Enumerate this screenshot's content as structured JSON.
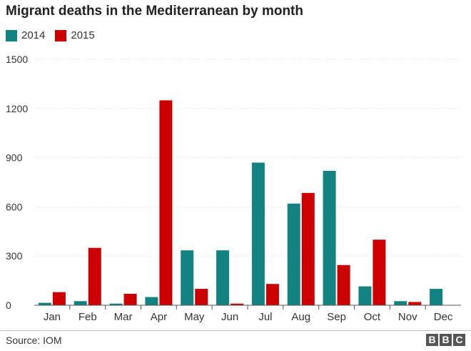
{
  "title": "Migrant deaths in the Mediterranean by month",
  "source": "Source: IOM",
  "logo_letters": [
    "B",
    "B",
    "C"
  ],
  "colors": {
    "2014": "#138381",
    "2015": "#cc0000",
    "grid": "#dddddd",
    "axis": "#555555"
  },
  "chart_data": {
    "type": "bar",
    "title": "Migrant deaths in the Mediterranean by month",
    "xlabel": "",
    "ylabel": "",
    "categories": [
      "Jan",
      "Feb",
      "Mar",
      "Apr",
      "May",
      "Jun",
      "Jul",
      "Aug",
      "Sep",
      "Oct",
      "Nov",
      "Dec"
    ],
    "series": [
      {
        "name": "2014",
        "values": [
          15,
          25,
          10,
          50,
          335,
          335,
          870,
          620,
          820,
          115,
          25,
          100
        ]
      },
      {
        "name": "2015",
        "values": [
          80,
          350,
          70,
          1250,
          100,
          10,
          130,
          685,
          245,
          400,
          20,
          null
        ]
      }
    ],
    "ylim": [
      0,
      1500
    ],
    "yticks": [
      0,
      300,
      600,
      900,
      1200,
      1500
    ],
    "grid": true,
    "legend": "top-left"
  }
}
